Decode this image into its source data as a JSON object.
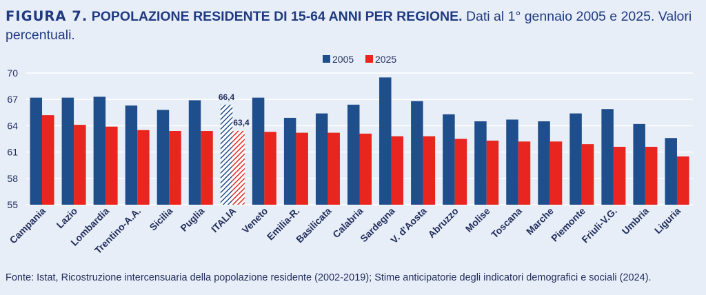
{
  "title": {
    "figure_label": "FIGURA 7.",
    "main": "POPOLAZIONE RESIDENTE DI 15-64 ANNI PER REGIONE.",
    "subtitle": "Dati al 1° gennaio 2005 e 2025. Valori percentuali."
  },
  "source": "Fonte: Istat, Ricostruzione intercensuaria della popolazione residente (2002-2019); Stime anticipatorie degli indicatori demografici e sociali (2024).",
  "colors": {
    "s2005": "#1f4e8c",
    "s2025": "#e8251f",
    "background": "#e8eef8"
  },
  "chart_data": {
    "type": "bar",
    "categories": [
      "Campania",
      "Lazio",
      "Lombardia",
      "Trentino-A.A.",
      "Sicilia",
      "Puglia",
      "ITALIA",
      "Veneto",
      "Emilia-R.",
      "Basilicata",
      "Calabria",
      "Sardegna",
      "V. d'Aosta",
      "Abruzzo",
      "Molise",
      "Toscana",
      "Marche",
      "Piemonte",
      "Friuli-V.G.",
      "Umbria",
      "Liguria"
    ],
    "series": [
      {
        "name": "2005",
        "values": [
          67.2,
          67.2,
          67.3,
          66.3,
          65.8,
          66.9,
          66.4,
          67.2,
          64.9,
          65.4,
          66.4,
          69.5,
          66.8,
          65.3,
          64.5,
          64.7,
          64.5,
          65.4,
          65.9,
          64.2,
          62.6
        ]
      },
      {
        "name": "2025",
        "values": [
          65.2,
          64.1,
          63.9,
          63.5,
          63.4,
          63.4,
          63.4,
          63.3,
          63.2,
          63.2,
          63.1,
          62.8,
          62.8,
          62.5,
          62.3,
          62.2,
          62.2,
          61.9,
          61.6,
          61.6,
          60.5
        ]
      }
    ],
    "highlight": {
      "category": "ITALIA",
      "labels": [
        "66,4",
        "63,4"
      ],
      "pattern": "hatched"
    },
    "yticks": [
      "70",
      "67",
      "64",
      "61",
      "58",
      "55"
    ],
    "ylim": [
      55,
      70
    ],
    "legend_position": "top-center",
    "grid": "horizontal"
  }
}
